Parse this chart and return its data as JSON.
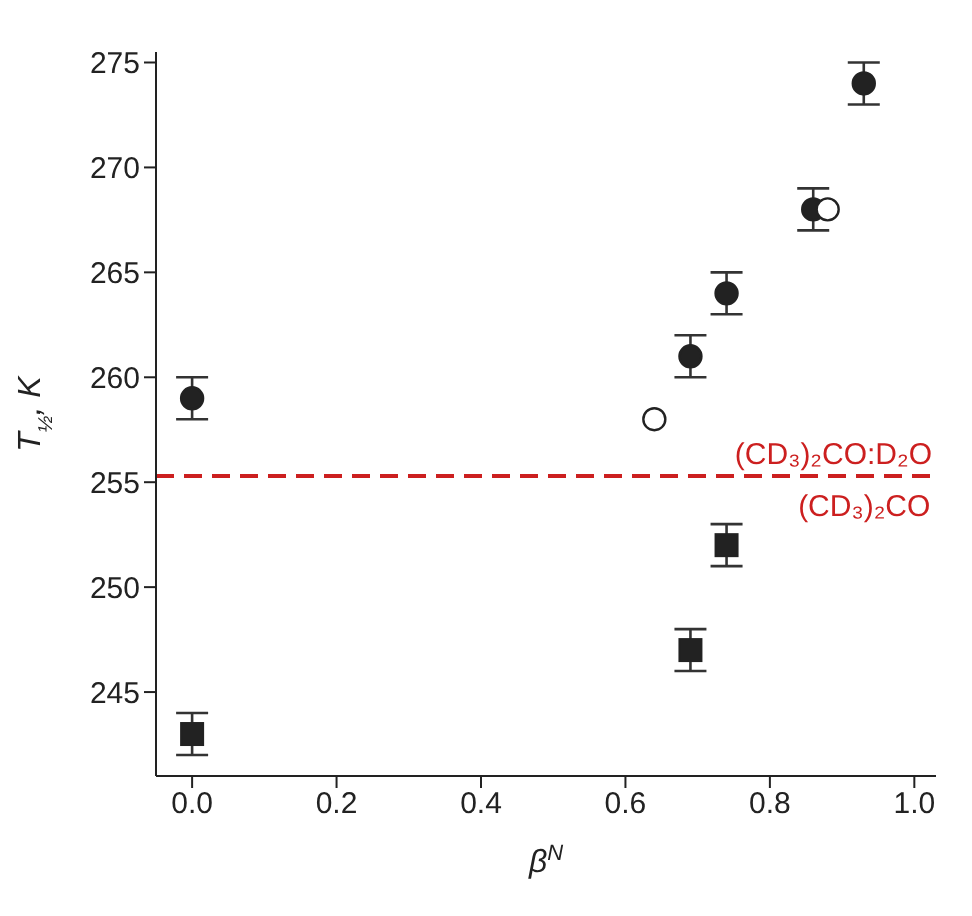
{
  "chart_data": {
    "type": "scatter",
    "xlabel": "β$^{N}$",
    "ylabel": "T$_{½}$, K",
    "xlim": [
      -0.05,
      1.03
    ],
    "ylim": [
      241,
      275.5
    ],
    "xticks": [
      {
        "value": 0,
        "label": "0.0"
      },
      {
        "value": 0.2,
        "label": "0.2"
      },
      {
        "value": 0.4,
        "label": "0.4"
      },
      {
        "value": 0.6,
        "label": "0.6"
      },
      {
        "value": 0.8,
        "label": "0.8"
      },
      {
        "value": 1,
        "label": "1.0"
      }
    ],
    "yticks": [
      245,
      250,
      255,
      260,
      265,
      270,
      275
    ],
    "series": [
      {
        "marker": "circle",
        "color": "#222222",
        "x": [
          0,
          0.69,
          0.74,
          0.86,
          0.93
        ],
        "values": [
          259,
          261,
          264,
          268,
          274
        ],
        "errors": [
          1,
          1,
          1,
          1,
          1
        ]
      },
      {
        "marker": "circle",
        "color": "#ffffff",
        "x": [
          0.64,
          0.88
        ],
        "values": [
          258,
          268
        ]
      },
      {
        "marker": "square",
        "color": "#222222",
        "x": [
          0,
          0.69,
          0.74
        ],
        "values": [
          243,
          247,
          252
        ],
        "errors": [
          1,
          1,
          1
        ]
      }
    ],
    "ref_lines": [
      {
        "axis": "y",
        "value": 255.3,
        "label": "(CD₃)₂CO:D₂O",
        "color": "#cc1f1f",
        "line_style": "dashed"
      }
    ],
    "annotations": [
      {
        "text": "(CD₃)₂CO",
        "x": 1.0,
        "y": 255.3
      }
    ]
  }
}
